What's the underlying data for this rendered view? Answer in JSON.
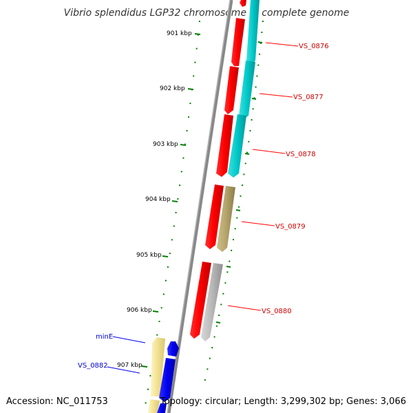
{
  "title": "Vibrio splendidus LGP32 chromosome 1, complete genome",
  "footer": {
    "accession": "Accession: NC_011753",
    "summary": "Topology: circular; Length: 3,299,302 bp; Genes: 3,066"
  },
  "ticks": [
    {
      "label": "901 kbp"
    },
    {
      "label": "902 kbp"
    },
    {
      "label": "903 kbp"
    },
    {
      "label": "904 kbp"
    },
    {
      "label": "905 kbp"
    },
    {
      "label": "906 kbp"
    },
    {
      "label": "907 kbp"
    }
  ],
  "genes": [
    {
      "id": "VS_0876",
      "strand": "forward",
      "color": "#00c0c0"
    },
    {
      "id": "VS_0877",
      "strand": "forward",
      "color": "#00c0c0"
    },
    {
      "id": "VS_0878",
      "strand": "forward",
      "color": "#00c0c0"
    },
    {
      "id": "VS_0879",
      "strand": "forward",
      "color": "#b4a46c"
    },
    {
      "id": "VS_0880",
      "strand": "forward",
      "color": "#b0b0b0"
    },
    {
      "id": "minE",
      "strand": "forward",
      "color": "#f0e090"
    },
    {
      "id": "VS_0882",
      "strand": "forward",
      "color": "#f0e090"
    }
  ],
  "colors": {
    "cds_track": "#ff0000",
    "backbone": "#808080",
    "tick": "#008000",
    "label_red": "#cc0000",
    "label_blue": "#0000cc",
    "blue_track": "#0000ee"
  }
}
